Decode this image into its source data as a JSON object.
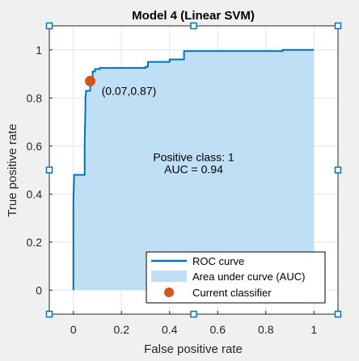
{
  "chart_data": {
    "type": "area",
    "title": "Model 4 (Linear SVM)",
    "xlabel": "False positive rate",
    "ylabel": "True positive rate",
    "xlim": [
      -0.1,
      1.1
    ],
    "ylim": [
      -0.1,
      1.1
    ],
    "xticks": [
      0,
      0.2,
      0.4,
      0.6,
      0.8,
      1
    ],
    "xtick_labels": [
      "0",
      "0.2",
      "0.4",
      "0.6",
      "0.8",
      "1"
    ],
    "yticks": [
      0,
      0.2,
      0.4,
      0.6,
      0.8,
      1
    ],
    "ytick_labels": [
      "0",
      "0.2",
      "0.4",
      "0.6",
      "0.8",
      "1"
    ],
    "grid": true,
    "legend_position": "bottom-right",
    "series": [
      {
        "name": "ROC curve",
        "color": "#0072bd",
        "points": [
          [
            0,
            0
          ],
          [
            0,
            0.37
          ],
          [
            0.003,
            0.48
          ],
          [
            0.047,
            0.48
          ],
          [
            0.047,
            0.62
          ],
          [
            0.05,
            0.75
          ],
          [
            0.05,
            0.8
          ],
          [
            0.053,
            0.83
          ],
          [
            0.07,
            0.83
          ],
          [
            0.07,
            0.87
          ],
          [
            0.08,
            0.87
          ],
          [
            0.08,
            0.91
          ],
          [
            0.09,
            0.91
          ],
          [
            0.09,
            0.92
          ],
          [
            0.11,
            0.92
          ],
          [
            0.11,
            0.925
          ],
          [
            0.3,
            0.925
          ],
          [
            0.3,
            0.93
          ],
          [
            0.31,
            0.93
          ],
          [
            0.31,
            0.94
          ],
          [
            0.31,
            0.95
          ],
          [
            0.4,
            0.95
          ],
          [
            0.4,
            0.96
          ],
          [
            0.46,
            0.96
          ],
          [
            0.46,
            0.995
          ],
          [
            0.87,
            0.995
          ],
          [
            0.87,
            1.0
          ],
          [
            1.0,
            1.0
          ]
        ]
      },
      {
        "name": "Area under curve (AUC)",
        "color": "#bfdff5"
      },
      {
        "name": "Current classifier",
        "color": "#d95319",
        "x": 0.07,
        "y": 0.87
      }
    ],
    "annotations": {
      "point_label": "(0.07,0.87)",
      "positive_class": "Positive class: 1",
      "auc": "AUC = 0.94"
    }
  }
}
